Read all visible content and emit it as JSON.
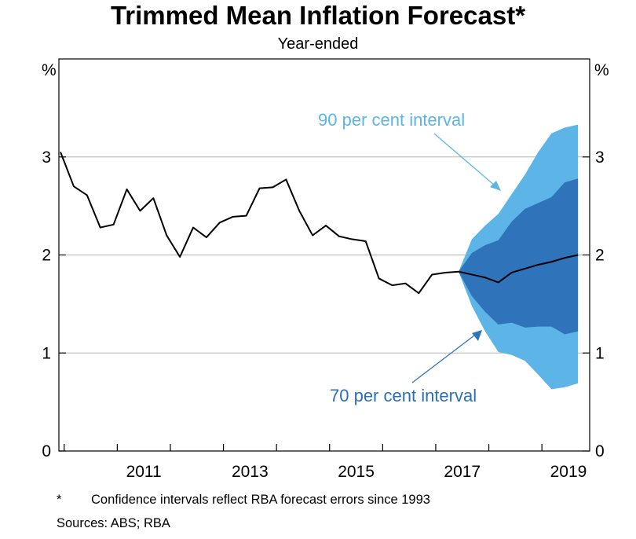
{
  "chart_data": {
    "type": "area",
    "title": "Trimmed Mean Inflation Forecast*",
    "subtitle": "Year-ended",
    "ylabel_left": "%",
    "ylabel_right": "%",
    "ylim": [
      0,
      4
    ],
    "yticks": [
      0,
      1,
      2,
      3
    ],
    "xlim": [
      2009.9,
      2019.9
    ],
    "xticks": [
      "2011",
      "2013",
      "2015",
      "2017",
      "2019"
    ],
    "grid": true,
    "series": [
      {
        "kind": "line",
        "color": "#000000",
        "points": [
          [
            2009.93,
            3.05
          ],
          [
            2010.18,
            2.7
          ],
          [
            2010.43,
            2.61
          ],
          [
            2010.68,
            2.28
          ],
          [
            2010.93,
            2.31
          ],
          [
            2011.18,
            2.67
          ],
          [
            2011.43,
            2.45
          ],
          [
            2011.68,
            2.58
          ],
          [
            2011.93,
            2.2
          ],
          [
            2012.18,
            1.98
          ],
          [
            2012.43,
            2.28
          ],
          [
            2012.68,
            2.18
          ],
          [
            2012.93,
            2.33
          ],
          [
            2013.18,
            2.39
          ],
          [
            2013.43,
            2.4
          ],
          [
            2013.68,
            2.68
          ],
          [
            2013.93,
            2.69
          ],
          [
            2014.18,
            2.77
          ],
          [
            2014.43,
            2.45
          ],
          [
            2014.68,
            2.2
          ],
          [
            2014.93,
            2.3
          ],
          [
            2015.18,
            2.19
          ],
          [
            2015.43,
            2.16
          ],
          [
            2015.68,
            2.14
          ],
          [
            2015.93,
            1.76
          ],
          [
            2016.18,
            1.69
          ],
          [
            2016.43,
            1.71
          ],
          [
            2016.68,
            1.61
          ],
          [
            2016.93,
            1.8
          ],
          [
            2017.18,
            1.82
          ],
          [
            2017.43,
            1.83
          ],
          [
            2017.68,
            1.8
          ],
          [
            2017.93,
            1.77
          ],
          [
            2018.18,
            1.72
          ],
          [
            2018.43,
            1.82
          ],
          [
            2018.68,
            1.86
          ],
          [
            2018.93,
            1.9
          ],
          [
            2019.18,
            1.93
          ],
          [
            2019.43,
            1.97
          ],
          [
            2019.68,
            2.0
          ]
        ]
      }
    ],
    "bands": [
      {
        "name": "90 per cent interval",
        "color": "#5cb5e6",
        "x": [
          2017.43,
          2017.68,
          2017.93,
          2018.18,
          2018.43,
          2018.68,
          2018.93,
          2019.18,
          2019.43,
          2019.68
        ],
        "upper": [
          1.83,
          2.16,
          2.3,
          2.42,
          2.62,
          2.82,
          3.05,
          3.24,
          3.3,
          3.33
        ],
        "lower": [
          1.83,
          1.48,
          1.22,
          1.01,
          0.98,
          0.92,
          0.78,
          0.63,
          0.65,
          0.69
        ]
      },
      {
        "name": "70 per cent interval",
        "color": "#2f73bb",
        "x": [
          2017.43,
          2017.68,
          2017.93,
          2018.18,
          2018.43,
          2018.68,
          2018.93,
          2019.18,
          2019.43,
          2019.68
        ],
        "upper": [
          1.83,
          2.02,
          2.1,
          2.15,
          2.34,
          2.47,
          2.53,
          2.59,
          2.74,
          2.78
        ],
        "lower": [
          1.83,
          1.58,
          1.42,
          1.29,
          1.31,
          1.26,
          1.27,
          1.27,
          1.19,
          1.22
        ]
      }
    ],
    "annotations": [
      {
        "text": "90 per cent interval"
      },
      {
        "text": "70 per cent interval"
      }
    ]
  },
  "footnote": {
    "marker": "*",
    "text": "Confidence intervals reflect RBA forecast errors since 1993"
  },
  "sources": "Sources: ABS; RBA"
}
